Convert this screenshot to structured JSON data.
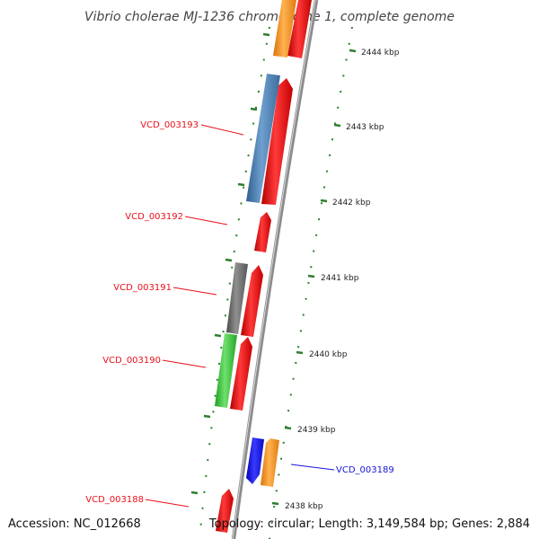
{
  "title": "Vibrio cholerae MJ-1236 chromosome 1, complete genome",
  "accession": "Accession: NC_012668",
  "summary": "Topology: circular; Length: 3,149,584 bp; Genes: 2,884",
  "scale_labels": [
    "2444 kbp",
    "2443 kbp",
    "2442 kbp",
    "2441 kbp",
    "2440 kbp",
    "2439 kbp",
    "2438 kbp"
  ],
  "gene_labels": [
    {
      "text": "VCD_003193",
      "color": "#e8101a"
    },
    {
      "text": "VCD_003192",
      "color": "#e8101a"
    },
    {
      "text": "VCD_003191",
      "color": "#e8101a"
    },
    {
      "text": "VCD_003190",
      "color": "#e8101a"
    },
    {
      "text": "VCD_003189",
      "color": "#1515d6"
    },
    {
      "text": "VCD_003188",
      "color": "#e8101a"
    }
  ],
  "colors": {
    "backbone": "#8c8c8c",
    "cds_red": "#ef1c1c",
    "blue_feature": "#4a7fb0",
    "gray_feature": "#6e6e6e",
    "green_feature": "#3bc73b",
    "orange_feature": "#f7961f",
    "royal_blue_feature": "#1a1aee",
    "ticks": "#2f7f2f"
  }
}
